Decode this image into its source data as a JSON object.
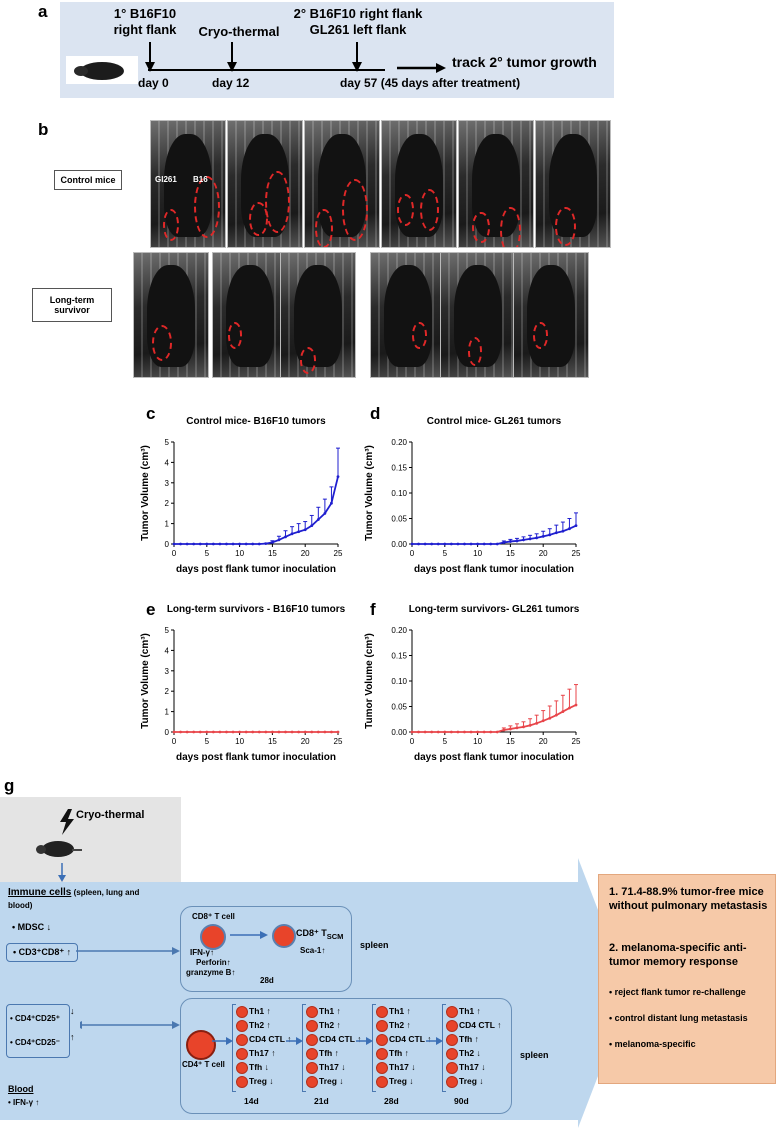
{
  "panel_labels": {
    "a": "a",
    "b": "b",
    "c": "c",
    "d": "d",
    "e": "e",
    "f": "f",
    "g": "g"
  },
  "timeline": {
    "event1_line1": "1° B16F10",
    "event1_line2": "right flank",
    "event2": "Cryo-thermal",
    "event3_line1": "2° B16F10 right flank",
    "event3_line2": "GL261 left flank",
    "track": "track 2° tumor growth",
    "day0": "day 0",
    "day12": "day 12",
    "day57": "day 57 (45 days after treatment)"
  },
  "photos": {
    "control_label": "Control mice",
    "survivor_label": "Long-term survivor",
    "gl261_tag": "Gl261",
    "b16_tag": "B16"
  },
  "charts": {
    "ylabel": "Tumor Volume (cm³)",
    "xlabel": "days post flank tumor inoculation",
    "colors": {
      "blue": "#1f1fcf",
      "red": "#e8454a"
    }
  },
  "chart_data": [
    {
      "id": "c",
      "type": "line",
      "title": "Control mice- B16F10 tumors",
      "xlabel": "days post flank tumor inoculation",
      "ylabel": "Tumor Volume (cm³)",
      "xlim": [
        0,
        25
      ],
      "ylim": [
        0,
        5
      ],
      "xticks": [
        0,
        5,
        10,
        15,
        20,
        25
      ],
      "yticks": [
        0,
        1,
        2,
        3,
        4,
        5
      ],
      "ytick_labels": [
        "0",
        "1",
        "2",
        "3",
        "4",
        "5"
      ],
      "color": "#1f1fcf",
      "x": [
        0,
        1,
        2,
        3,
        4,
        5,
        6,
        7,
        8,
        9,
        10,
        11,
        12,
        13,
        14,
        15,
        16,
        17,
        18,
        19,
        20,
        21,
        22,
        23,
        24,
        25
      ],
      "y": [
        0,
        0,
        0,
        0,
        0,
        0,
        0,
        0,
        0,
        0,
        0,
        0,
        0,
        0,
        0.02,
        0.08,
        0.2,
        0.35,
        0.5,
        0.6,
        0.7,
        0.9,
        1.2,
        1.5,
        2.0,
        3.3
      ],
      "err": [
        0,
        0,
        0,
        0,
        0,
        0,
        0,
        0,
        0,
        0,
        0,
        0,
        0,
        0,
        0.02,
        0.08,
        0.18,
        0.3,
        0.35,
        0.4,
        0.4,
        0.5,
        0.6,
        0.7,
        0.8,
        1.4
      ]
    },
    {
      "id": "d",
      "type": "line",
      "title": "Control mice- GL261 tumors",
      "xlabel": "days post flank tumor inoculation",
      "ylabel": "Tumor Volume (cm³)",
      "xlim": [
        0,
        25
      ],
      "ylim": [
        0,
        0.2
      ],
      "xticks": [
        0,
        5,
        10,
        15,
        20,
        25
      ],
      "yticks": [
        0,
        0.05,
        0.1,
        0.15,
        0.2
      ],
      "ytick_labels": [
        "0.00",
        "0.05",
        "0.10",
        "0.15",
        "0.20"
      ],
      "color": "#1f1fcf",
      "x": [
        0,
        1,
        2,
        3,
        4,
        5,
        6,
        7,
        8,
        9,
        10,
        11,
        12,
        13,
        14,
        15,
        16,
        17,
        18,
        19,
        20,
        21,
        22,
        23,
        24,
        25
      ],
      "y": [
        0,
        0,
        0,
        0,
        0,
        0,
        0,
        0,
        0,
        0,
        0,
        0,
        0,
        0,
        0.003,
        0.005,
        0.006,
        0.008,
        0.01,
        0.012,
        0.015,
        0.018,
        0.022,
        0.025,
        0.03,
        0.036
      ],
      "err": [
        0,
        0,
        0,
        0,
        0,
        0,
        0,
        0,
        0,
        0,
        0,
        0,
        0,
        0,
        0.003,
        0.004,
        0.005,
        0.006,
        0.007,
        0.008,
        0.01,
        0.012,
        0.015,
        0.018,
        0.02,
        0.025
      ]
    },
    {
      "id": "e",
      "type": "line",
      "title": "Long-term survivors - B16F10 tumors",
      "xlabel": "days post flank tumor inoculation",
      "ylabel": "Tumor Volume (cm³)",
      "xlim": [
        0,
        25
      ],
      "ylim": [
        0,
        5
      ],
      "xticks": [
        0,
        5,
        10,
        15,
        20,
        25
      ],
      "yticks": [
        0,
        1,
        2,
        3,
        4,
        5
      ],
      "ytick_labels": [
        "0",
        "1",
        "2",
        "3",
        "4",
        "5"
      ],
      "color": "#e8454a",
      "x": [
        0,
        1,
        2,
        3,
        4,
        5,
        6,
        7,
        8,
        9,
        10,
        11,
        12,
        13,
        14,
        15,
        16,
        17,
        18,
        19,
        20,
        21,
        22,
        23,
        24,
        25
      ],
      "y": [
        0,
        0,
        0,
        0,
        0,
        0,
        0,
        0,
        0,
        0,
        0,
        0,
        0,
        0,
        0,
        0,
        0,
        0,
        0,
        0,
        0,
        0,
        0,
        0,
        0,
        0
      ],
      "err": [
        0,
        0,
        0,
        0,
        0,
        0,
        0,
        0,
        0,
        0,
        0,
        0,
        0,
        0,
        0,
        0,
        0,
        0,
        0,
        0,
        0,
        0,
        0,
        0,
        0,
        0
      ]
    },
    {
      "id": "f",
      "type": "line",
      "title": "Long-term survivors- GL261 tumors",
      "xlabel": "days post flank tumor inoculation",
      "ylabel": "Tumor Volume (cm³)",
      "xlim": [
        0,
        25
      ],
      "ylim": [
        0,
        0.2
      ],
      "xticks": [
        0,
        5,
        10,
        15,
        20,
        25
      ],
      "yticks": [
        0,
        0.05,
        0.1,
        0.15,
        0.2
      ],
      "ytick_labels": [
        "0.00",
        "0.05",
        "0.10",
        "0.15",
        "0.20"
      ],
      "color": "#e8454a",
      "x": [
        0,
        1,
        2,
        3,
        4,
        5,
        6,
        7,
        8,
        9,
        10,
        11,
        12,
        13,
        14,
        15,
        16,
        17,
        18,
        19,
        20,
        21,
        22,
        23,
        24,
        25
      ],
      "y": [
        0,
        0,
        0,
        0,
        0,
        0,
        0,
        0,
        0,
        0,
        0,
        0,
        0,
        0,
        0.004,
        0.006,
        0.008,
        0.01,
        0.013,
        0.017,
        0.022,
        0.027,
        0.033,
        0.04,
        0.047,
        0.053
      ],
      "err": [
        0,
        0,
        0,
        0,
        0,
        0,
        0,
        0,
        0,
        0,
        0,
        0,
        0,
        0,
        0.004,
        0.006,
        0.008,
        0.01,
        0.013,
        0.016,
        0.02,
        0.024,
        0.028,
        0.032,
        0.037,
        0.04
      ]
    }
  ],
  "schematic": {
    "treatment": "Cryo-thermal",
    "immune_title": "Immune cells",
    "immune_sub": " (spleen, lung and",
    "immune_sub2": "blood)",
    "mdsc": "MDSC",
    "cd3cd8": "CD3⁺CD8⁺",
    "cd4cd25p": "CD4⁺CD25⁺",
    "cd4cd25n": "CD4⁺CD25⁻",
    "blood_title": "Blood",
    "blood_ifn": "IFN-γ",
    "cd8_title": "CD8⁺ T cell",
    "cd8_ifn": "IFN-γ",
    "cd8_perforin": "Perforin",
    "cd8_granzyme": "granzyme B",
    "tscm": "CD8⁺ T",
    "tscm_sub": "SCM",
    "sca1": "Sca-1",
    "cd8_day": "28d",
    "spleen1": "spleen",
    "spleen2": "spleen",
    "cd4_tcell": "CD4⁺ T cell",
    "timepoints": [
      {
        "day": "14d",
        "subsets": [
          {
            "name": "Th1",
            "dir": "↑"
          },
          {
            "name": "Th2",
            "dir": "↑"
          },
          {
            "name": "CD4 CTL",
            "dir": "↑"
          },
          {
            "name": "Th17",
            "dir": "↑"
          },
          {
            "name": "Tfh",
            "dir": "↓"
          },
          {
            "name": "Treg",
            "dir": "↓"
          }
        ]
      },
      {
        "day": "21d",
        "subsets": [
          {
            "name": "Th1",
            "dir": "↑"
          },
          {
            "name": "Th2",
            "dir": "↑"
          },
          {
            "name": "CD4 CTL",
            "dir": "↑"
          },
          {
            "name": "Tfh",
            "dir": "↑"
          },
          {
            "name": "Th17",
            "dir": "↓"
          },
          {
            "name": "Treg",
            "dir": "↓"
          }
        ]
      },
      {
        "day": "28d",
        "subsets": [
          {
            "name": "Th1",
            "dir": "↑"
          },
          {
            "name": "Th2",
            "dir": "↑"
          },
          {
            "name": "CD4 CTL",
            "dir": "↑"
          },
          {
            "name": "Tfh",
            "dir": "↑"
          },
          {
            "name": "Th17",
            "dir": "↓"
          },
          {
            "name": "Treg",
            "dir": "↓"
          }
        ]
      },
      {
        "day": "90d",
        "subsets": [
          {
            "name": "Th1",
            "dir": "↑"
          },
          {
            "name": "CD4 CTL",
            "dir": "↑"
          },
          {
            "name": "Tfh",
            "dir": "↑"
          },
          {
            "name": "Th2",
            "dir": "↓"
          },
          {
            "name": "Th17",
            "dir": "↓"
          },
          {
            "name": "Treg",
            "dir": "↓"
          }
        ]
      }
    ],
    "outcome1": "1. 71.4-88.9% tumor-free mice without pulmonary metastasis",
    "outcome2": "2. melanoma-specific anti-tumor memory response",
    "bullets": [
      "reject flank tumor re-challenge",
      "control distant lung metastasis",
      "melanoma-specific"
    ]
  }
}
